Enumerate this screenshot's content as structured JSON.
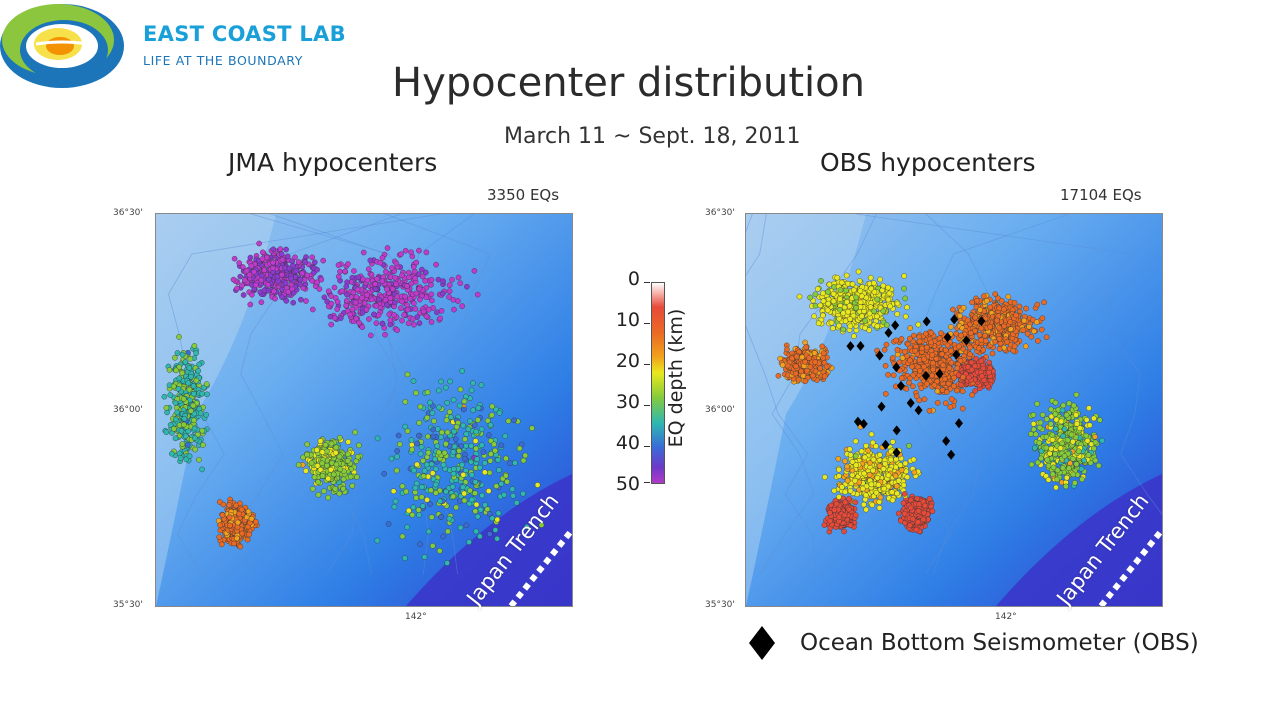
{
  "logo": {
    "name": "EAST COAST LAB",
    "tagline": "LIFE AT THE BOUNDARY",
    "colors": {
      "green": "#8cc63f",
      "blue": "#1b75b8",
      "orange": "#f39200",
      "cyan": "#1aa0d8"
    }
  },
  "slide": {
    "title": "Hypocenter distribution",
    "date_range": "March 11 ~ Sept. 18, 2011"
  },
  "panels": {
    "jma": {
      "title": "JMA hypocenters",
      "count": "3350 EQs",
      "trench_label": "Japan Trench",
      "lat_ticks": [
        "36°30'",
        "36°00'",
        "35°30'"
      ],
      "lon_tick": "142°"
    },
    "obs": {
      "title": "OBS hypocenters",
      "count": "17104 EQs",
      "trench_label": "Japan Trench",
      "lat_ticks": [
        "36°30'",
        "36°00'",
        "35°30'"
      ],
      "lon_tick": "142°"
    }
  },
  "colorbar": {
    "label": "EQ depth (km)",
    "ticks": [
      "0",
      "10",
      "20",
      "30",
      "40",
      "50"
    ],
    "range": [
      0,
      50
    ]
  },
  "legend": {
    "obs_symbol": "diamond-icon",
    "obs_label": "Ocean Bottom Seismometer (OBS)"
  }
}
